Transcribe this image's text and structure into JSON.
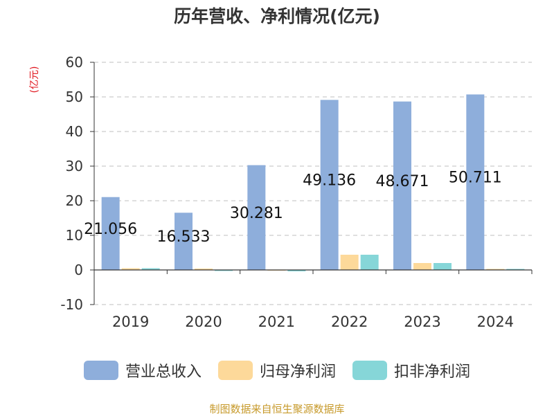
{
  "chart_data": {
    "type": "bar",
    "title": "历年营收、净利情况(亿元)",
    "unit": "(亿元)",
    "categories": [
      "2019",
      "2020",
      "2021",
      "2022",
      "2023",
      "2024"
    ],
    "ylim": [
      -10,
      60
    ],
    "yticks": [
      -10,
      0,
      10,
      20,
      30,
      40,
      50,
      60
    ],
    "grid": true,
    "legend_position": "bottom",
    "series": [
      {
        "name": "营业总收入",
        "color": "#8eaedb",
        "values": [
          21.056,
          16.533,
          30.281,
          49.136,
          48.671,
          50.711
        ],
        "labels": [
          "21.056",
          "16.533",
          "30.281",
          "49.136",
          "48.671",
          "50.711"
        ]
      },
      {
        "name": "归母净利润",
        "color": "#fdd99a",
        "values": [
          0.5,
          0.4,
          -0.2,
          4.4,
          2.0,
          0.3
        ]
      },
      {
        "name": "扣非净利润",
        "color": "#86d6d8",
        "values": [
          0.5,
          -0.3,
          -0.4,
          4.4,
          2.0,
          0.3
        ]
      }
    ]
  },
  "source": "制图数据来自恒生聚源数据库"
}
